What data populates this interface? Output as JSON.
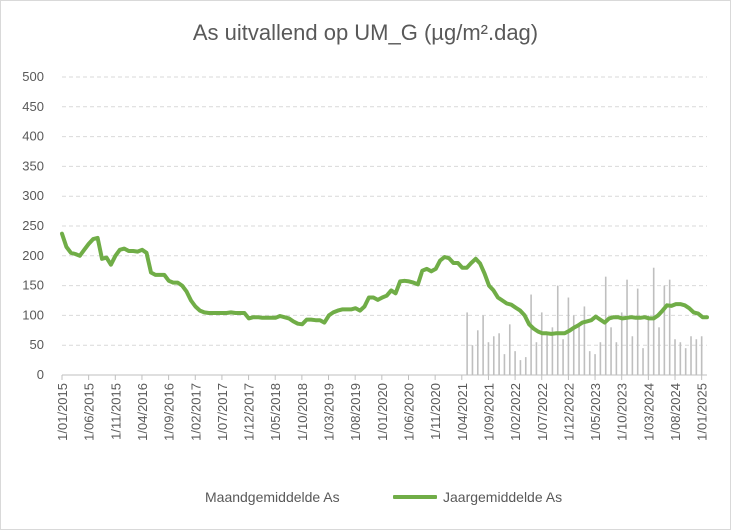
{
  "chart_data": {
    "type": "bar+line",
    "title": "As uitvallend op UM_G (µg/m².dag)",
    "ylim": [
      0,
      500
    ],
    "yticks": [
      "0",
      "50",
      "100",
      "150",
      "200",
      "250",
      "300",
      "350",
      "400",
      "450",
      "500"
    ],
    "grid": true,
    "legend_position": "bottom",
    "x_tick_labels": [
      "1/01/2015",
      "1/06/2015",
      "1/11/2015",
      "1/04/2016",
      "1/09/2016",
      "1/02/2017",
      "1/07/2017",
      "1/12/2017",
      "1/05/2018",
      "1/10/2018",
      "1/03/2019",
      "1/08/2019",
      "1/01/2020",
      "1/06/2020",
      "1/11/2020",
      "1/04/2021",
      "1/09/2021",
      "1/02/2022",
      "1/07/2022",
      "1/12/2022",
      "1/05/2023",
      "1/10/2023",
      "1/03/2024",
      "1/08/2024",
      "1/01/2025"
    ],
    "series": [
      {
        "name": "Maandgemiddelde As",
        "kind": "bar",
        "color": "#bfbfbf",
        "x_start": "2021-05",
        "values": [
          105,
          50,
          75,
          100,
          55,
          65,
          70,
          35,
          85,
          40,
          25,
          30,
          135,
          55,
          105,
          70,
          80,
          150,
          60,
          130,
          100,
          85,
          115,
          40,
          35,
          55,
          165,
          80,
          55,
          105,
          160,
          65,
          145,
          45,
          100,
          180,
          80,
          150,
          160,
          60,
          55,
          45,
          65,
          60,
          65
        ]
      },
      {
        "name": "Jaargemiddelde As",
        "kind": "line",
        "color": "#70ad47",
        "x_start": "2015-01",
        "values": [
          237,
          215,
          205,
          203,
          200,
          210,
          220,
          228,
          230,
          195,
          197,
          185,
          200,
          210,
          212,
          208,
          208,
          207,
          210,
          205,
          172,
          168,
          168,
          168,
          158,
          155,
          155,
          150,
          140,
          125,
          115,
          108,
          105,
          104,
          104,
          104,
          104,
          104,
          105,
          104,
          104,
          104,
          95,
          97,
          97,
          96,
          96,
          96,
          96,
          99,
          97,
          95,
          90,
          86,
          85,
          93,
          93,
          92,
          92,
          88,
          100,
          105,
          108,
          110,
          110,
          110,
          112,
          108,
          115,
          130,
          130,
          126,
          130,
          133,
          142,
          137,
          157,
          158,
          157,
          155,
          152,
          175,
          178,
          174,
          178,
          192,
          198,
          196,
          188,
          188,
          180,
          180,
          188,
          195,
          187,
          170,
          150,
          142,
          130,
          125,
          120,
          118,
          113,
          108,
          100,
          85,
          78,
          73,
          70,
          70,
          69,
          70,
          70,
          70,
          74,
          79,
          83,
          88,
          90,
          92,
          98,
          93,
          88,
          95,
          97,
          97,
          95,
          96,
          97,
          96,
          96,
          97,
          95,
          95,
          100,
          108,
          117,
          116,
          119,
          119,
          117,
          112,
          105,
          103,
          97,
          97
        ]
      }
    ]
  }
}
